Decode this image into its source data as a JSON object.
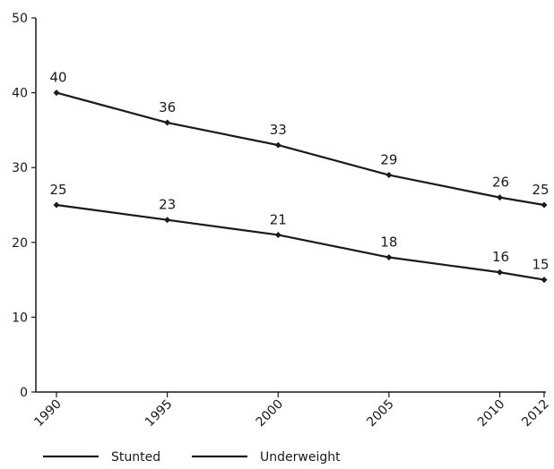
{
  "chart_data": {
    "type": "line",
    "title": "",
    "xlabel": "",
    "ylabel": "",
    "x": [
      1990,
      1995,
      2000,
      2005,
      2010,
      2012
    ],
    "xtick_labels": [
      "1990",
      "1995",
      "2000",
      "2005",
      "2010",
      "2012"
    ],
    "ylim": [
      0,
      50
    ],
    "yticks": [
      0,
      10,
      20,
      30,
      40,
      50
    ],
    "ytick_labels": [
      "0",
      "10",
      "20",
      "30",
      "40",
      "50"
    ],
    "grid": false,
    "legend_position": "bottom-left",
    "series": [
      {
        "name": "Stunted",
        "values": [
          40,
          36,
          33,
          29,
          26,
          25
        ],
        "labels": [
          "40",
          "36",
          "33",
          "29",
          "26",
          "25"
        ],
        "color": "#1a1a1a"
      },
      {
        "name": "Underweight",
        "values": [
          25,
          23,
          21,
          18,
          16,
          15
        ],
        "labels": [
          "25",
          "23",
          "21",
          "18",
          "16",
          "15"
        ],
        "color": "#1a1a1a"
      }
    ]
  }
}
